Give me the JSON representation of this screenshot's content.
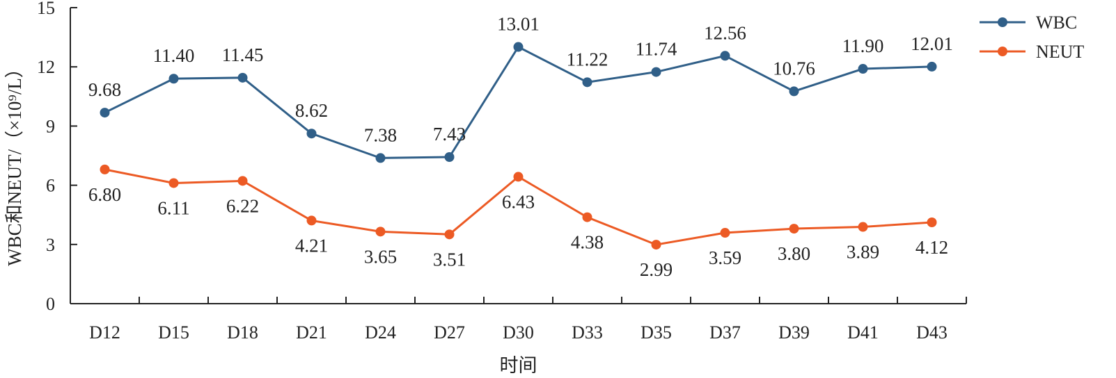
{
  "chart_data": {
    "type": "line",
    "title": "",
    "xlabel": "时间",
    "ylabel": "WBC和NEUT/（×10⁹/L）",
    "ylim": [
      0,
      15
    ],
    "yticks": [
      "0",
      "3",
      "6",
      "9",
      "12",
      "15"
    ],
    "categories": [
      "D12",
      "D15",
      "D18",
      "D21",
      "D24",
      "D27",
      "D30",
      "D33",
      "D35",
      "D37",
      "D39",
      "D41",
      "D43"
    ],
    "series": [
      {
        "name": "WBC",
        "color": "#305f88",
        "values": [
          9.68,
          11.4,
          11.45,
          8.62,
          7.38,
          7.43,
          13.01,
          11.22,
          11.74,
          12.56,
          10.76,
          11.9,
          12.01
        ],
        "labels": [
          "9.68",
          "11.40",
          "11.45",
          "8.62",
          "7.38",
          "7.43",
          "13.01",
          "11.22",
          "11.74",
          "12.56",
          "10.76",
          "11.90",
          "12.01"
        ]
      },
      {
        "name": "NEUT",
        "color": "#ec5a24",
        "values": [
          6.8,
          6.11,
          6.22,
          4.21,
          3.65,
          3.51,
          6.43,
          4.38,
          2.99,
          3.59,
          3.8,
          3.89,
          4.12
        ],
        "labels": [
          "6.80",
          "6.11",
          "6.22",
          "4.21",
          "3.65",
          "3.51",
          "6.43",
          "4.38",
          "2.99",
          "3.59",
          "3.80",
          "3.89",
          "4.12"
        ]
      }
    ],
    "grid": false,
    "legend_position": "top-right"
  }
}
